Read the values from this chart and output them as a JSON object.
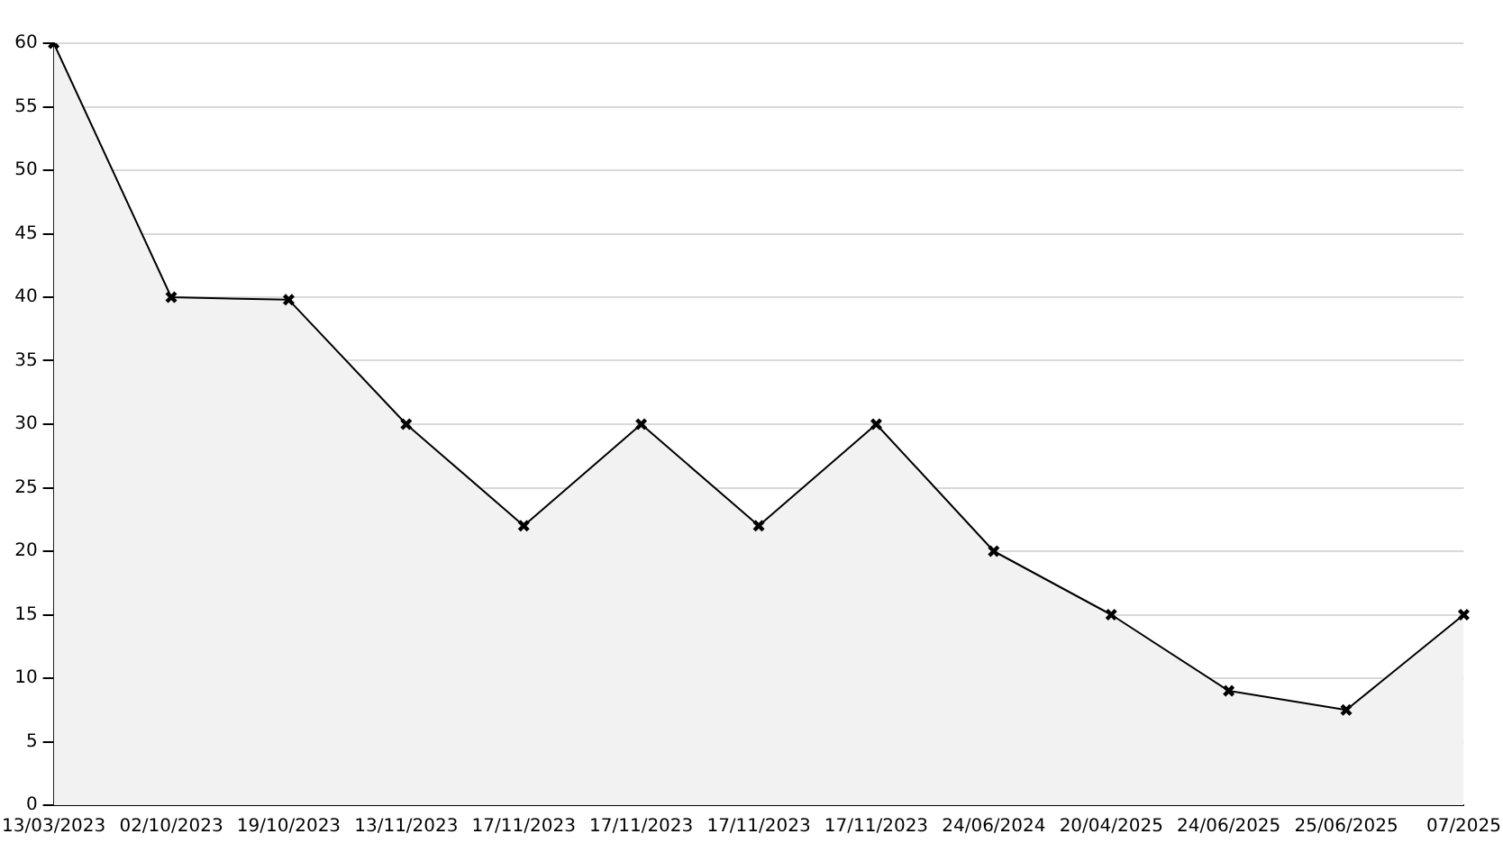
{
  "chart_data": {
    "type": "area",
    "categories": [
      "13/03/2023",
      "02/10/2023",
      "19/10/2023",
      "13/11/2023",
      "17/11/2023",
      "17/11/2023",
      "17/11/2023",
      "17/11/2023",
      "24/06/2024",
      "20/04/2025",
      "24/06/2025",
      "25/06/2025",
      "07/2025"
    ],
    "series": [
      {
        "color": "#000000",
        "values": [
          60,
          40,
          39.8,
          30,
          22,
          30,
          22,
          30,
          20,
          15,
          9,
          7.5,
          15
        ]
      }
    ],
    "ylim": [
      0,
      60
    ],
    "yticks": [
      0,
      5,
      10,
      15,
      20,
      25,
      30,
      35,
      40,
      45,
      50,
      55,
      60
    ],
    "grid": "y",
    "marker": "cross",
    "legend": false
  }
}
